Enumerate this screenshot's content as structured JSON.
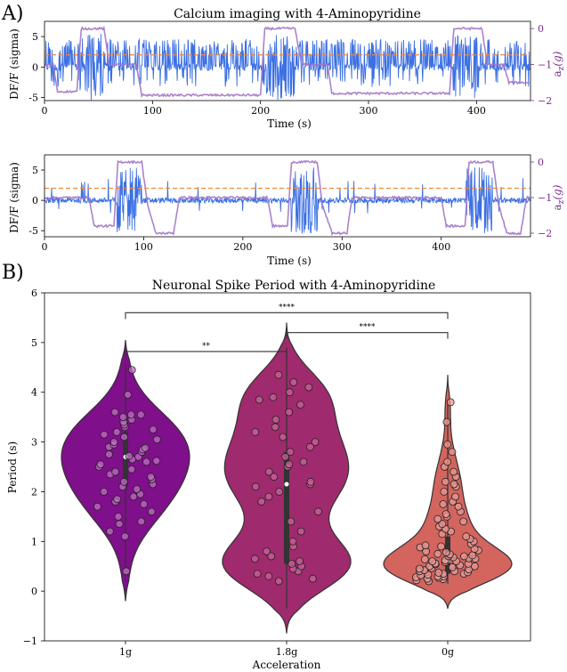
{
  "panel_labels": [
    "A)",
    "B)"
  ],
  "colors": {
    "trace": "#3b6fe3",
    "accel": "#a274c7",
    "threshold": "#f08a3c",
    "axis_right": "#7b2d8e",
    "violin_1g": "#7f0f8a",
    "violin_18g": "#a02a6e",
    "violin_0g": "#d4645e",
    "point_1g": "#c06fc3",
    "point_18g": "#c8649a",
    "point_0g": "#e89a96"
  },
  "chart_data": [
    {
      "type": "line",
      "title": "Calcium imaging with 4-Aminopyridine",
      "xlabel": "Time (s)",
      "ylabel": "DF/F (sigma)",
      "ylabel_right": "a",
      "ylabel_right_sub": "z",
      "ylabel_right_tail": "(g)",
      "xlim": [
        0,
        450
      ],
      "ylim": [
        -5.5,
        7.5
      ],
      "ylim_right": [
        -2,
        0.2
      ],
      "xticks": [
        0,
        100,
        200,
        300,
        400
      ],
      "yticks": [
        -5,
        0,
        5
      ],
      "yticks_right": [
        0,
        -1,
        -2
      ],
      "threshold": 2,
      "series": [
        {
          "role": "DF/F",
          "pattern": "continuous",
          "bursts": [
            [
              32,
              55
            ],
            [
              205,
              232
            ],
            [
              378,
              405
            ]
          ],
          "baseline_amp": 4.5
        },
        {
          "role": "a_z",
          "segments": [
            [
              0,
              -1
            ],
            [
              8,
              -1
            ],
            [
              12,
              -1.75
            ],
            [
              30,
              -1.75
            ],
            [
              34,
              0
            ],
            [
              55,
              0
            ],
            [
              60,
              -1
            ],
            [
              85,
              -1
            ],
            [
              90,
              -1.85
            ],
            [
              200,
              -1.85
            ],
            [
              204,
              0
            ],
            [
              232,
              0
            ],
            [
              238,
              -1
            ],
            [
              262,
              -1
            ],
            [
              266,
              -1.8
            ],
            [
              375,
              -1.8
            ],
            [
              379,
              0
            ],
            [
              405,
              0
            ],
            [
              410,
              -1
            ],
            [
              425,
              -1
            ],
            [
              430,
              -1.5
            ],
            [
              450,
              -1.5
            ]
          ]
        }
      ]
    },
    {
      "type": "line",
      "title": "",
      "xlabel": "Time (s)",
      "ylabel": "DF/F (sigma)",
      "ylabel_right": "a",
      "ylabel_right_sub": "z",
      "ylabel_right_tail": "(g)",
      "xlim": [
        0,
        490
      ],
      "ylim": [
        -6,
        7.5
      ],
      "ylim_right": [
        -2.1,
        0.2
      ],
      "xticks": [
        0,
        100,
        200,
        300,
        400
      ],
      "yticks": [
        -5,
        0,
        5
      ],
      "yticks_right": [
        0,
        -1,
        -2
      ],
      "threshold": 2,
      "series": [
        {
          "role": "DF/F",
          "pattern": "quiet",
          "bursts": [
            [
              72,
              98
            ],
            [
              248,
              275
            ],
            [
              425,
              452
            ]
          ],
          "baseline_amp": 0.7
        },
        {
          "role": "a_z",
          "segments": [
            [
              0,
              -1
            ],
            [
              45,
              -1
            ],
            [
              50,
              -1.8
            ],
            [
              70,
              -1.8
            ],
            [
              74,
              0
            ],
            [
              98,
              0
            ],
            [
              104,
              -1.2
            ],
            [
              112,
              -2
            ],
            [
              130,
              -2
            ],
            [
              136,
              -1
            ],
            [
              225,
              -1
            ],
            [
              230,
              -1.8
            ],
            [
              245,
              -1.8
            ],
            [
              249,
              0
            ],
            [
              275,
              0
            ],
            [
              280,
              -1.2
            ],
            [
              290,
              -2
            ],
            [
              305,
              -2
            ],
            [
              310,
              -1
            ],
            [
              400,
              -1
            ],
            [
              405,
              -1.8
            ],
            [
              424,
              -1.8
            ],
            [
              428,
              0
            ],
            [
              452,
              0
            ],
            [
              458,
              -1.2
            ],
            [
              466,
              -2
            ],
            [
              480,
              -2
            ],
            [
              486,
              -1
            ],
            [
              490,
              -1
            ]
          ]
        }
      ]
    },
    {
      "type": "violin",
      "title": "Neuronal Spike Period with 4-Aminopyridine",
      "xlabel": "Acceleration",
      "ylabel": "Period (s)",
      "categories": [
        "1g",
        "1.8g",
        "0g"
      ],
      "ylim": [
        -1,
        6
      ],
      "yticks": [
        -1,
        0,
        1,
        2,
        3,
        4,
        5,
        6
      ],
      "series": [
        {
          "category": "1g",
          "violin_range": [
            -0.2,
            5.05
          ],
          "median": 2.7,
          "iqr": [
            2.1,
            3.2
          ],
          "points": [
            0.4,
            1.1,
            1.2,
            1.35,
            1.4,
            1.5,
            1.6,
            1.7,
            1.75,
            1.8,
            1.85,
            1.9,
            1.95,
            2.0,
            2.05,
            2.1,
            2.15,
            2.2,
            2.25,
            2.3,
            2.35,
            2.4,
            2.45,
            2.5,
            2.55,
            2.6,
            2.62,
            2.65,
            2.7,
            2.72,
            2.75,
            2.8,
            2.85,
            2.88,
            2.9,
            2.95,
            3.0,
            3.05,
            3.1,
            3.15,
            3.2,
            3.25,
            3.3,
            3.35,
            3.4,
            3.45,
            3.5,
            3.55,
            3.55,
            3.6,
            3.95,
            4.45
          ]
        },
        {
          "category": "1.8g",
          "violin_range": [
            -0.85,
            5.4
          ],
          "median": 2.15,
          "iqr": [
            0.55,
            2.8
          ],
          "points": [
            0.2,
            0.25,
            0.3,
            0.35,
            0.4,
            0.45,
            0.5,
            0.55,
            0.6,
            0.65,
            0.7,
            0.8,
            0.9,
            1.0,
            1.2,
            1.4,
            1.6,
            1.8,
            1.9,
            2.0,
            2.1,
            2.15,
            2.2,
            2.3,
            2.4,
            2.5,
            2.55,
            2.6,
            2.7,
            2.8,
            2.9,
            3.0,
            3.1,
            3.2,
            3.3,
            3.45,
            3.6,
            3.75,
            3.85,
            3.9,
            4.0,
            4.1,
            4.2,
            4.35
          ]
        },
        {
          "category": "0g",
          "violin_range": [
            -0.35,
            4.35
          ],
          "median": 0.6,
          "iqr": [
            0.35,
            1.1
          ],
          "points": [
            0.2,
            0.22,
            0.24,
            0.25,
            0.27,
            0.28,
            0.3,
            0.3,
            0.32,
            0.33,
            0.35,
            0.35,
            0.37,
            0.38,
            0.4,
            0.4,
            0.42,
            0.44,
            0.45,
            0.46,
            0.48,
            0.5,
            0.5,
            0.52,
            0.54,
            0.55,
            0.56,
            0.58,
            0.6,
            0.6,
            0.62,
            0.64,
            0.65,
            0.66,
            0.68,
            0.7,
            0.7,
            0.72,
            0.74,
            0.75,
            0.78,
            0.8,
            0.82,
            0.85,
            0.88,
            0.9,
            0.92,
            0.95,
            1.0,
            1.05,
            1.1,
            1.15,
            1.2,
            1.25,
            1.3,
            1.35,
            1.4,
            1.45,
            1.5,
            1.55,
            1.6,
            1.7,
            1.75,
            1.8,
            1.9,
            2.0,
            2.1,
            2.15,
            2.2,
            2.3,
            2.4,
            2.5,
            2.6,
            2.8,
            2.95,
            3.4,
            3.8
          ]
        }
      ],
      "significance": [
        {
          "from": "1g",
          "to": "1.8g",
          "y": 4.82,
          "label": "**"
        },
        {
          "from": "1.8g",
          "to": "0g",
          "y": 5.2,
          "label": "****"
        },
        {
          "from": "1g",
          "to": "0g",
          "y": 5.6,
          "label": "****"
        }
      ]
    }
  ]
}
